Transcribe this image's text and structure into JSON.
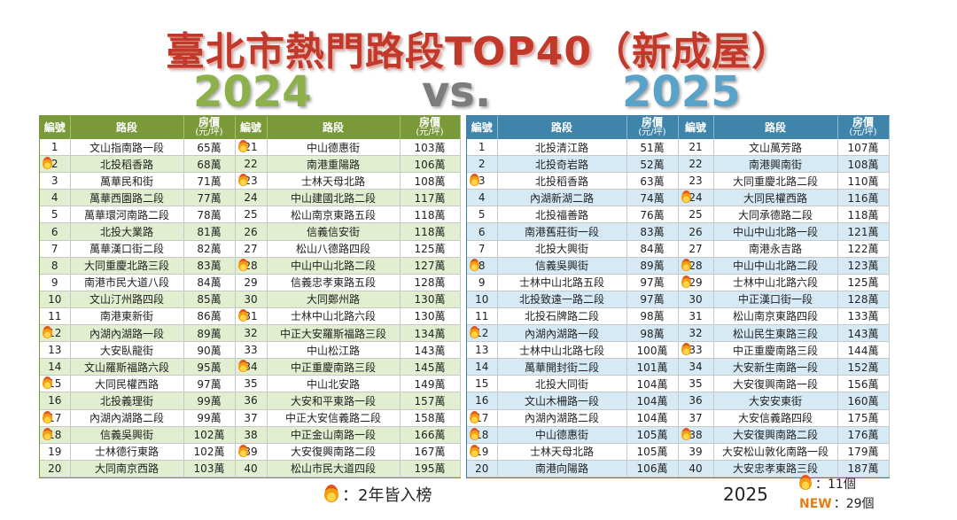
{
  "title": "臺北市熱門路段TOP40（新成屋）",
  "years": {
    "left": "2024",
    "vs": "vs.",
    "right": "2025"
  },
  "headers": {
    "num": "編號",
    "road": "路段",
    "price": "房價",
    "price_unit": "(元/坪)"
  },
  "colors": {
    "green": "#7a9a3a",
    "blue": "#3f84aa",
    "title": "#c0392b"
  },
  "table_2024": [
    {
      "num": "1",
      "road": "文山指南路一段",
      "price": "65萬",
      "fire": false
    },
    {
      "num": "2",
      "road": "北投稻香路",
      "price": "68萬",
      "fire": true
    },
    {
      "num": "3",
      "road": "萬華民和街",
      "price": "71萬",
      "fire": false
    },
    {
      "num": "4",
      "road": "萬華西園路二段",
      "price": "77萬",
      "fire": false
    },
    {
      "num": "5",
      "road": "萬華環河南路二段",
      "price": "78萬",
      "fire": false
    },
    {
      "num": "6",
      "road": "北投大業路",
      "price": "81萬",
      "fire": false
    },
    {
      "num": "7",
      "road": "萬華漢口街二段",
      "price": "82萬",
      "fire": false
    },
    {
      "num": "8",
      "road": "大同重慶北路三段",
      "price": "83萬",
      "fire": false
    },
    {
      "num": "9",
      "road": "南港市民大道八段",
      "price": "84萬",
      "fire": false
    },
    {
      "num": "10",
      "road": "文山汀州路四段",
      "price": "85萬",
      "fire": false
    },
    {
      "num": "11",
      "road": "南港東新街",
      "price": "86萬",
      "fire": false
    },
    {
      "num": "12",
      "road": "內湖內湖路一段",
      "price": "89萬",
      "fire": true
    },
    {
      "num": "13",
      "road": "大安臥龍街",
      "price": "90萬",
      "fire": false
    },
    {
      "num": "14",
      "road": "文山羅斯福路六段",
      "price": "95萬",
      "fire": false
    },
    {
      "num": "15",
      "road": "大同民權西路",
      "price": "97萬",
      "fire": true
    },
    {
      "num": "16",
      "road": "北投義理街",
      "price": "99萬",
      "fire": false
    },
    {
      "num": "17",
      "road": "內湖內湖路二段",
      "price": "99萬",
      "fire": true
    },
    {
      "num": "18",
      "road": "信義吳興街",
      "price": "102萬",
      "fire": true
    },
    {
      "num": "19",
      "road": "士林德行東路",
      "price": "102萬",
      "fire": false
    },
    {
      "num": "20",
      "road": "大同南京西路",
      "price": "103萬",
      "fire": false
    },
    {
      "num": "21",
      "road": "中山德惠街",
      "price": "103萬",
      "fire": true
    },
    {
      "num": "22",
      "road": "南港重陽路",
      "price": "106萬",
      "fire": false
    },
    {
      "num": "23",
      "road": "士林天母北路",
      "price": "108萬",
      "fire": true
    },
    {
      "num": "24",
      "road": "中山建國北路二段",
      "price": "117萬",
      "fire": false
    },
    {
      "num": "25",
      "road": "松山南京東路五段",
      "price": "118萬",
      "fire": false
    },
    {
      "num": "26",
      "road": "信義信安街",
      "price": "118萬",
      "fire": false
    },
    {
      "num": "27",
      "road": "松山八德路四段",
      "price": "125萬",
      "fire": false
    },
    {
      "num": "28",
      "road": "中山中山北路二段",
      "price": "127萬",
      "fire": true
    },
    {
      "num": "29",
      "road": "信義忠孝東路五段",
      "price": "128萬",
      "fire": false
    },
    {
      "num": "30",
      "road": "大同鄭州路",
      "price": "130萬",
      "fire": false
    },
    {
      "num": "31",
      "road": "士林中山北路六段",
      "price": "130萬",
      "fire": true
    },
    {
      "num": "32",
      "road": "中正大安羅斯福路三段",
      "price": "134萬",
      "fire": false
    },
    {
      "num": "33",
      "road": "中山松江路",
      "price": "143萬",
      "fire": false
    },
    {
      "num": "34",
      "road": "中正重慶南路三段",
      "price": "145萬",
      "fire": true
    },
    {
      "num": "35",
      "road": "中山北安路",
      "price": "149萬",
      "fire": false
    },
    {
      "num": "36",
      "road": "大安和平東路一段",
      "price": "157萬",
      "fire": false
    },
    {
      "num": "37",
      "road": "中正大安信義路二段",
      "price": "158萬",
      "fire": false
    },
    {
      "num": "38",
      "road": "中正金山南路一段",
      "price": "166萬",
      "fire": false
    },
    {
      "num": "39",
      "road": "大安復興南路二段",
      "price": "167萬",
      "fire": true
    },
    {
      "num": "40",
      "road": "松山市民大道四段",
      "price": "195萬",
      "fire": false
    }
  ],
  "table_2025": [
    {
      "num": "1",
      "road": "北投清江路",
      "price": "51萬",
      "fire": false
    },
    {
      "num": "2",
      "road": "北投奇岩路",
      "price": "52萬",
      "fire": false
    },
    {
      "num": "3",
      "road": "北投稻香路",
      "price": "63萬",
      "fire": true
    },
    {
      "num": "4",
      "road": "內湖新湖二路",
      "price": "74萬",
      "fire": false
    },
    {
      "num": "5",
      "road": "北投福善路",
      "price": "76萬",
      "fire": false
    },
    {
      "num": "6",
      "road": "南港舊莊街一段",
      "price": "83萬",
      "fire": false
    },
    {
      "num": "7",
      "road": "北投大興街",
      "price": "84萬",
      "fire": false
    },
    {
      "num": "8",
      "road": "信義吳興街",
      "price": "89萬",
      "fire": true
    },
    {
      "num": "9",
      "road": "士林中山北路五段",
      "price": "97萬",
      "fire": false
    },
    {
      "num": "10",
      "road": "北投致遠一路二段",
      "price": "97萬",
      "fire": false
    },
    {
      "num": "11",
      "road": "北投石牌路二段",
      "price": "98萬",
      "fire": false
    },
    {
      "num": "12",
      "road": "內湖內湖路一段",
      "price": "98萬",
      "fire": true
    },
    {
      "num": "13",
      "road": "士林中山北路七段",
      "price": "100萬",
      "fire": false
    },
    {
      "num": "14",
      "road": "萬華開封街二段",
      "price": "101萬",
      "fire": false
    },
    {
      "num": "15",
      "road": "北投大同街",
      "price": "104萬",
      "fire": false
    },
    {
      "num": "16",
      "road": "文山木柵路一段",
      "price": "104萬",
      "fire": false
    },
    {
      "num": "17",
      "road": "內湖內湖路二段",
      "price": "104萬",
      "fire": true
    },
    {
      "num": "18",
      "road": "中山德惠街",
      "price": "105萬",
      "fire": true
    },
    {
      "num": "19",
      "road": "士林天母北路",
      "price": "105萬",
      "fire": true
    },
    {
      "num": "20",
      "road": "南港向陽路",
      "price": "106萬",
      "fire": false
    },
    {
      "num": "21",
      "road": "文山萬芳路",
      "price": "107萬",
      "fire": false
    },
    {
      "num": "22",
      "road": "南港興南街",
      "price": "108萬",
      "fire": false
    },
    {
      "num": "23",
      "road": "大同重慶北路二段",
      "price": "110萬",
      "fire": false
    },
    {
      "num": "24",
      "road": "大同民權西路",
      "price": "116萬",
      "fire": true
    },
    {
      "num": "25",
      "road": "大同承德路二段",
      "price": "118萬",
      "fire": false
    },
    {
      "num": "26",
      "road": "中山中山北路一段",
      "price": "121萬",
      "fire": false
    },
    {
      "num": "27",
      "road": "南港永吉路",
      "price": "122萬",
      "fire": false
    },
    {
      "num": "28",
      "road": "中山中山北路二段",
      "price": "123萬",
      "fire": true
    },
    {
      "num": "29",
      "road": "士林中山北路六段",
      "price": "125萬",
      "fire": true
    },
    {
      "num": "30",
      "road": "中正漢口街一段",
      "price": "128萬",
      "fire": false
    },
    {
      "num": "31",
      "road": "松山南京東路四段",
      "price": "133萬",
      "fire": false
    },
    {
      "num": "32",
      "road": "松山民生東路三段",
      "price": "143萬",
      "fire": false
    },
    {
      "num": "33",
      "road": "中正重慶南路三段",
      "price": "144萬",
      "fire": true
    },
    {
      "num": "34",
      "road": "大安新生南路一段",
      "price": "152萬",
      "fire": false
    },
    {
      "num": "35",
      "road": "大安復興南路一段",
      "price": "156萬",
      "fire": false
    },
    {
      "num": "36",
      "road": "大安安東街",
      "price": "160萬",
      "fire": false
    },
    {
      "num": "37",
      "road": "大安信義路四段",
      "price": "175萬",
      "fire": false
    },
    {
      "num": "38",
      "road": "大安復興南路二段",
      "price": "176萬",
      "fire": true
    },
    {
      "num": "39",
      "road": "大安松山敦化南路一段",
      "price": "179萬",
      "fire": false
    },
    {
      "num": "40",
      "road": "大安忠孝東路三段",
      "price": "187萬",
      "fire": false
    }
  ],
  "legend": {
    "text": "：2年皆入榜",
    "icon": "fire-icon"
  },
  "stats": {
    "year": "2025",
    "fire_count": "：11個",
    "new_label": "NEW",
    "new_count": "：29個"
  }
}
